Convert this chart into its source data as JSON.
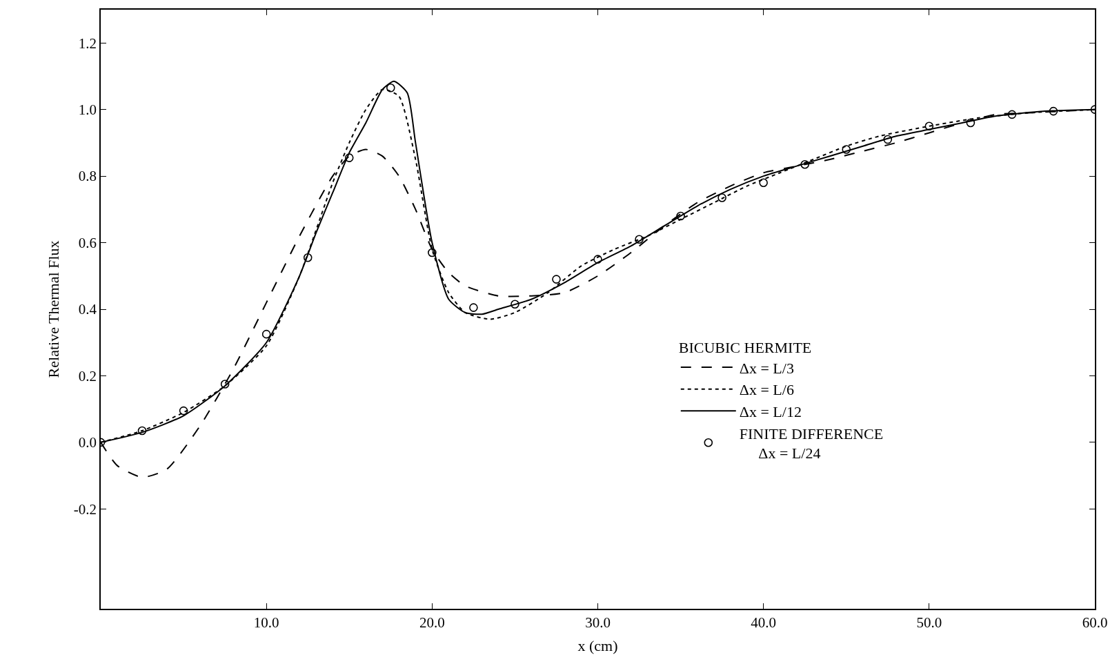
{
  "chart_data": {
    "type": "line",
    "xlabel": "x (cm)",
    "ylabel": "Relative Thermal Flux",
    "legend_title": "BICUBIC HERMITE",
    "xlim": [
      0,
      60
    ],
    "ylim": [
      -0.5,
      1.3
    ],
    "xticks": [
      {
        "value": 10,
        "label": "10.0"
      },
      {
        "value": 20,
        "label": "20.0"
      },
      {
        "value": 30,
        "label": "30.0"
      },
      {
        "value": 40,
        "label": "40.0"
      },
      {
        "value": 50,
        "label": "50.0"
      },
      {
        "value": 60,
        "label": "60.0"
      }
    ],
    "yticks": [
      {
        "value": -0.2,
        "label": "-0.2"
      },
      {
        "value": 0,
        "label": "0.0"
      },
      {
        "value": 0.2,
        "label": "0.2"
      },
      {
        "value": 0.4,
        "label": "0.4"
      },
      {
        "value": 0.6,
        "label": "0.6"
      },
      {
        "value": 0.8,
        "label": "0.8"
      },
      {
        "value": 1.0,
        "label": "1.0"
      },
      {
        "value": 1.2,
        "label": "1.2"
      }
    ],
    "legend": "bottom right",
    "series": [
      {
        "name": "Δx = L/3",
        "color": "#000000",
        "line_style": "dashed",
        "x": [
          0,
          1,
          2.5,
          4,
          6,
          8,
          10,
          12,
          14,
          15,
          16,
          17,
          18,
          19,
          20,
          21,
          22,
          24,
          26,
          28,
          30,
          32,
          34,
          36,
          38,
          40,
          42,
          44,
          46,
          48,
          50,
          52,
          54,
          56,
          60
        ],
        "values": [
          0,
          -0.07,
          -0.105,
          -0.08,
          0.05,
          0.22,
          0.42,
          0.62,
          0.8,
          0.86,
          0.88,
          0.86,
          0.8,
          0.7,
          0.58,
          0.51,
          0.47,
          0.44,
          0.44,
          0.45,
          0.5,
          0.57,
          0.65,
          0.72,
          0.77,
          0.81,
          0.83,
          0.85,
          0.875,
          0.9,
          0.93,
          0.96,
          0.985,
          0.99,
          1.0
        ]
      },
      {
        "name": "Δx = L/6",
        "color": "#000000",
        "line_style": "dotted",
        "x": [
          0,
          2.5,
          5,
          7.5,
          10,
          12,
          14,
          15,
          16,
          17,
          18,
          19,
          20,
          21,
          22,
          23.5,
          25,
          27,
          29,
          31,
          33,
          35,
          37,
          39,
          41,
          43,
          45,
          47,
          50,
          53,
          56,
          60
        ],
        "values": [
          0,
          0.035,
          0.09,
          0.17,
          0.29,
          0.5,
          0.78,
          0.9,
          1.0,
          1.06,
          1.04,
          0.85,
          0.58,
          0.45,
          0.39,
          0.37,
          0.39,
          0.45,
          0.53,
          0.58,
          0.62,
          0.67,
          0.72,
          0.77,
          0.81,
          0.85,
          0.89,
          0.92,
          0.95,
          0.975,
          0.99,
          1.0
        ]
      },
      {
        "name": "Δx = L/12",
        "color": "#000000",
        "line_style": "solid",
        "x": [
          0,
          2.5,
          5,
          7.5,
          10,
          12,
          13,
          14,
          15,
          16,
          17,
          17.7,
          18.5,
          19,
          20,
          21,
          22,
          23,
          24,
          26,
          28,
          30,
          32,
          34,
          36,
          38,
          40,
          42,
          44,
          46,
          48,
          50,
          52,
          54,
          57,
          60
        ],
        "values": [
          0,
          0.03,
          0.08,
          0.17,
          0.3,
          0.5,
          0.63,
          0.75,
          0.87,
          0.96,
          1.06,
          1.085,
          1.05,
          0.9,
          0.6,
          0.43,
          0.39,
          0.385,
          0.4,
          0.43,
          0.48,
          0.54,
          0.59,
          0.65,
          0.71,
          0.76,
          0.8,
          0.83,
          0.86,
          0.89,
          0.92,
          0.94,
          0.96,
          0.98,
          0.995,
          1.0
        ]
      },
      {
        "name": "FINITE DIFFERENCE\n     Δx = L/24",
        "color": "#000000",
        "type": "scatter",
        "marker": "circle",
        "x": [
          0,
          2.5,
          5,
          7.5,
          10,
          12.5,
          15,
          17.5,
          20,
          22.5,
          25,
          27.5,
          30,
          32.5,
          35,
          37.5,
          40,
          42.5,
          45,
          47.5,
          50,
          52.5,
          55,
          57.5,
          60
        ],
        "values": [
          0,
          0.035,
          0.095,
          0.175,
          0.325,
          0.555,
          0.855,
          1.065,
          0.57,
          0.405,
          0.415,
          0.49,
          0.55,
          0.61,
          0.68,
          0.735,
          0.78,
          0.835,
          0.88,
          0.91,
          0.95,
          0.96,
          0.985,
          0.995,
          1.0
        ]
      }
    ]
  }
}
